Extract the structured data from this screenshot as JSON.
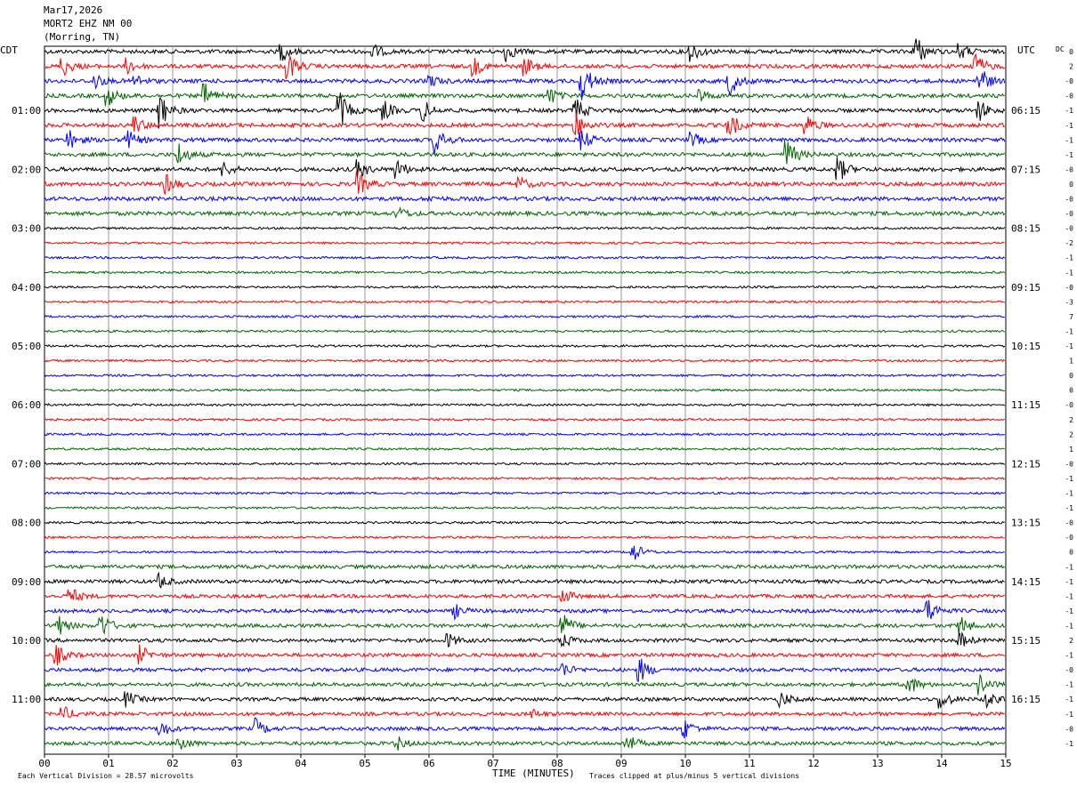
{
  "header": {
    "date": "Mar17,2026",
    "station": "MORT2 EHZ NM 00",
    "location": "(Morring, TN)"
  },
  "left_tz": "CDT",
  "right_tz": "UTC",
  "dc_label": "DC",
  "footer": {
    "scale_note": "Each Vertical Division =   28.57 microvolts",
    "clip_note": "Traces clipped at plus/minus 5 vertical divisions",
    "x_title": "TIME (MINUTES)"
  },
  "chart_data": {
    "type": "line",
    "title": "",
    "xlabel": "TIME (MINUTES)",
    "xlim": [
      0,
      15
    ],
    "x_ticks": [
      "00",
      "01",
      "02",
      "03",
      "04",
      "05",
      "06",
      "07",
      "08",
      "09",
      "10",
      "11",
      "12",
      "13",
      "14",
      "15"
    ],
    "trace_count": 48,
    "trace_colors": [
      "#000000",
      "#ff0000",
      "#0000ff",
      "#006400"
    ],
    "left_hour_labels": [
      "01:00",
      "02:00",
      "03:00",
      "04:00",
      "05:00",
      "06:00",
      "07:00",
      "08:00",
      "09:00",
      "10:00",
      "11:00"
    ],
    "right_hour_labels": [
      "06:15",
      "07:15",
      "08:15",
      "09:15",
      "10:15",
      "11:15",
      "12:15",
      "13:15",
      "14:15",
      "15:15",
      "16:15"
    ],
    "dc_offsets": [
      "0",
      "2",
      "-0",
      "-0",
      "-1",
      "-1",
      "-1",
      "-1",
      "-0",
      "0",
      "-0",
      "-0",
      "-0",
      "-2",
      "-1",
      "-1",
      "-0",
      "-3",
      "7",
      "-1",
      "-1",
      "1",
      "0",
      "0",
      "-0",
      "2",
      "2",
      "1",
      "-0",
      "-1",
      "-1",
      "-1",
      "-0",
      "-0",
      "0",
      "-1",
      "-1",
      "-1",
      "-1",
      "-1",
      "2",
      "-1",
      "-0",
      "-1",
      "-1",
      "-1",
      "-0",
      "-1"
    ],
    "events": [
      {
        "trace": 0,
        "minute": 3.7,
        "amp": 4
      },
      {
        "trace": 0,
        "minute": 5.1,
        "amp": 4
      },
      {
        "trace": 0,
        "minute": 7.2,
        "amp": 4
      },
      {
        "trace": 0,
        "minute": 10.1,
        "amp": 4
      },
      {
        "trace": 0,
        "minute": 13.6,
        "amp": 7
      },
      {
        "trace": 0,
        "minute": 14.3,
        "amp": 3
      },
      {
        "trace": 1,
        "minute": 0.3,
        "amp": 4
      },
      {
        "trace": 1,
        "minute": 1.3,
        "amp": 3
      },
      {
        "trace": 1,
        "minute": 3.8,
        "amp": 6
      },
      {
        "trace": 1,
        "minute": 6.7,
        "amp": 4
      },
      {
        "trace": 1,
        "minute": 7.5,
        "amp": 4
      },
      {
        "trace": 1,
        "minute": 14.5,
        "amp": 7
      },
      {
        "trace": 2,
        "minute": 0.8,
        "amp": 3
      },
      {
        "trace": 2,
        "minute": 1.4,
        "amp": 3
      },
      {
        "trace": 2,
        "minute": 6.0,
        "amp": 3
      },
      {
        "trace": 2,
        "minute": 8.4,
        "amp": 8
      },
      {
        "trace": 2,
        "minute": 10.7,
        "amp": 6
      },
      {
        "trace": 2,
        "minute": 14.6,
        "amp": 6
      },
      {
        "trace": 3,
        "minute": 1.0,
        "amp": 4
      },
      {
        "trace": 3,
        "minute": 2.5,
        "amp": 5
      },
      {
        "trace": 3,
        "minute": 7.9,
        "amp": 3
      },
      {
        "trace": 3,
        "minute": 10.2,
        "amp": 3
      },
      {
        "trace": 4,
        "minute": 1.8,
        "amp": 8
      },
      {
        "trace": 4,
        "minute": 4.6,
        "amp": 8
      },
      {
        "trace": 4,
        "minute": 5.3,
        "amp": 4
      },
      {
        "trace": 4,
        "minute": 5.9,
        "amp": 5
      },
      {
        "trace": 4,
        "minute": 8.3,
        "amp": 5
      },
      {
        "trace": 4,
        "minute": 14.6,
        "amp": 4
      },
      {
        "trace": 5,
        "minute": 1.4,
        "amp": 4
      },
      {
        "trace": 5,
        "minute": 8.3,
        "amp": 5
      },
      {
        "trace": 5,
        "minute": 10.7,
        "amp": 5
      },
      {
        "trace": 5,
        "minute": 11.9,
        "amp": 4
      },
      {
        "trace": 6,
        "minute": 0.4,
        "amp": 4
      },
      {
        "trace": 6,
        "minute": 1.3,
        "amp": 4
      },
      {
        "trace": 6,
        "minute": 6.1,
        "amp": 6
      },
      {
        "trace": 6,
        "minute": 8.4,
        "amp": 4
      },
      {
        "trace": 6,
        "minute": 10.1,
        "amp": 3
      },
      {
        "trace": 7,
        "minute": 2.1,
        "amp": 5
      },
      {
        "trace": 7,
        "minute": 11.6,
        "amp": 6
      },
      {
        "trace": 8,
        "minute": 2.8,
        "amp": 3
      },
      {
        "trace": 8,
        "minute": 4.9,
        "amp": 4
      },
      {
        "trace": 8,
        "minute": 5.5,
        "amp": 4
      },
      {
        "trace": 8,
        "minute": 12.4,
        "amp": 5
      },
      {
        "trace": 9,
        "minute": 1.9,
        "amp": 4
      },
      {
        "trace": 9,
        "minute": 4.9,
        "amp": 5
      },
      {
        "trace": 9,
        "minute": 7.4,
        "amp": 3
      },
      {
        "trace": 10,
        "minute": 6.0,
        "amp": 1
      },
      {
        "trace": 11,
        "minute": 5.5,
        "amp": 3
      },
      {
        "trace": 34,
        "minute": 9.2,
        "amp": 4
      },
      {
        "trace": 36,
        "minute": 1.8,
        "amp": 3
      },
      {
        "trace": 37,
        "minute": 0.4,
        "amp": 4
      },
      {
        "trace": 37,
        "minute": 8.1,
        "amp": 3
      },
      {
        "trace": 38,
        "minute": 6.4,
        "amp": 3
      },
      {
        "trace": 38,
        "minute": 13.8,
        "amp": 5
      },
      {
        "trace": 39,
        "minute": 0.2,
        "amp": 5
      },
      {
        "trace": 39,
        "minute": 0.9,
        "amp": 5
      },
      {
        "trace": 39,
        "minute": 8.1,
        "amp": 5
      },
      {
        "trace": 39,
        "minute": 14.3,
        "amp": 4
      },
      {
        "trace": 40,
        "minute": 6.3,
        "amp": 3
      },
      {
        "trace": 40,
        "minute": 8.1,
        "amp": 3
      },
      {
        "trace": 40,
        "minute": 14.3,
        "amp": 3
      },
      {
        "trace": 41,
        "minute": 0.2,
        "amp": 4
      },
      {
        "trace": 41,
        "minute": 1.5,
        "amp": 4
      },
      {
        "trace": 42,
        "minute": 8.1,
        "amp": 3
      },
      {
        "trace": 42,
        "minute": 9.3,
        "amp": 5
      },
      {
        "trace": 43,
        "minute": 13.5,
        "amp": 4
      },
      {
        "trace": 43,
        "minute": 14.6,
        "amp": 4
      },
      {
        "trace": 44,
        "minute": 1.3,
        "amp": 3
      },
      {
        "trace": 44,
        "minute": 11.5,
        "amp": 3
      },
      {
        "trace": 44,
        "minute": 14.0,
        "amp": 4
      },
      {
        "trace": 44,
        "minute": 14.7,
        "amp": 4
      },
      {
        "trace": 45,
        "minute": 0.3,
        "amp": 3
      },
      {
        "trace": 45,
        "minute": 7.6,
        "amp": 2
      },
      {
        "trace": 46,
        "minute": 1.8,
        "amp": 4
      },
      {
        "trace": 46,
        "minute": 3.3,
        "amp": 4
      },
      {
        "trace": 46,
        "minute": 10.0,
        "amp": 4
      },
      {
        "trace": 47,
        "minute": 2.1,
        "amp": 4
      },
      {
        "trace": 47,
        "minute": 5.5,
        "amp": 3
      },
      {
        "trace": 47,
        "minute": 9.1,
        "amp": 4
      }
    ]
  }
}
